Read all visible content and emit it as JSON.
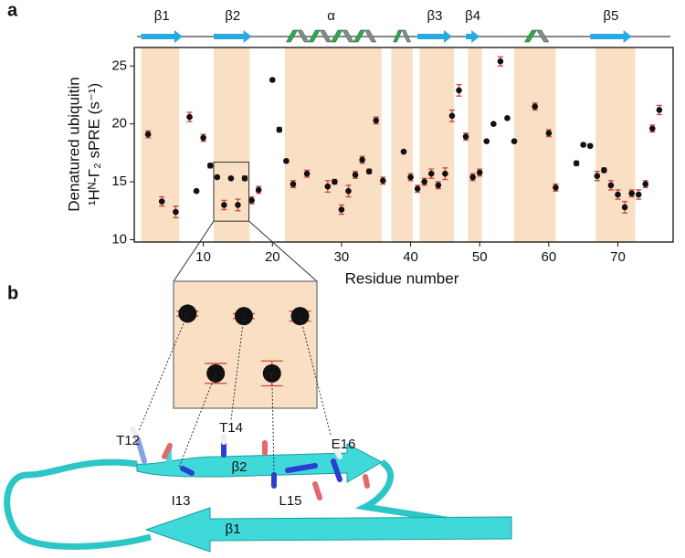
{
  "chart_data": {
    "type": "scatter",
    "panel_label": "a",
    "xlabel": "Residue number",
    "ylabel": [
      "Denatured ubiquitin",
      "¹Hᴺ-Γ₂ sPRE (s⁻¹)"
    ],
    "x": [
      2,
      4,
      6,
      8,
      9,
      10,
      11,
      12,
      13,
      14,
      15,
      16,
      17,
      18,
      20,
      21,
      22,
      23,
      25,
      28,
      29,
      30,
      31,
      32,
      33,
      34,
      35,
      36,
      39,
      40,
      41,
      42,
      43,
      44,
      45,
      46,
      47,
      48,
      49,
      50,
      51,
      52,
      53,
      54,
      55,
      58,
      60,
      61,
      64,
      65,
      66,
      67,
      68,
      69,
      70,
      71,
      72,
      73,
      74,
      75,
      76
    ],
    "values": [
      19.1,
      13.3,
      12.4,
      20.6,
      14.2,
      18.8,
      16.4,
      15.4,
      13.0,
      15.3,
      13.0,
      15.3,
      13.4,
      14.3,
      23.8,
      19.5,
      16.8,
      14.8,
      15.7,
      14.6,
      15.0,
      12.6,
      14.2,
      15.6,
      16.9,
      15.9,
      20.3,
      15.1,
      17.6,
      15.4,
      14.4,
      15.0,
      15.7,
      14.7,
      15.7,
      20.7,
      22.9,
      18.9,
      15.4,
      15.8,
      18.5,
      20.0,
      25.4,
      20.5,
      18.5,
      21.5,
      19.2,
      14.5,
      16.6,
      18.2,
      18.1,
      15.5,
      16.0,
      14.7,
      13.9,
      12.8,
      14.0,
      13.9,
      14.8,
      19.6,
      21.2
    ],
    "errors": [
      0.3,
      0.4,
      0.5,
      0.4,
      0.1,
      0.3,
      0.2,
      0.1,
      0.4,
      0.1,
      0.5,
      0.2,
      0.3,
      0.3,
      0.1,
      0.2,
      0.1,
      0.3,
      0.3,
      0.5,
      0.2,
      0.4,
      0.5,
      0.3,
      0.3,
      0.2,
      0.3,
      0.3,
      0.1,
      0.3,
      0.3,
      0.3,
      0.4,
      0.3,
      0.5,
      0.5,
      0.5,
      0.3,
      0.3,
      0.3,
      0.1,
      0.1,
      0.4,
      0.1,
      0.1,
      0.3,
      0.3,
      0.3,
      0.2,
      0.1,
      0.1,
      0.4,
      0.2,
      0.4,
      0.4,
      0.5,
      0.3,
      0.4,
      0.3,
      0.3,
      0.4
    ],
    "color": "#111111",
    "error_color": "#d0453a",
    "xlim": [
      0,
      78
    ],
    "ylim": [
      9.8,
      26.6
    ],
    "xticks": [
      10,
      20,
      30,
      40,
      50,
      60,
      70
    ],
    "yticks": [
      10,
      15,
      20,
      25
    ],
    "highlight_ranges": [
      [
        1,
        6.5
      ],
      [
        11.5,
        16.7
      ],
      [
        21.8,
        35.8
      ],
      [
        37.2,
        40.3
      ],
      [
        41.3,
        46.3
      ],
      [
        48.3,
        50.3
      ],
      [
        55,
        61
      ],
      [
        66.8,
        72.5
      ]
    ],
    "highlight_color": "#f9dfc4",
    "secondary_structure": [
      {
        "kind": "strand",
        "label": "β1",
        "start": 1,
        "end": 7
      },
      {
        "kind": "strand",
        "label": "β2",
        "start": 11.5,
        "end": 17
      },
      {
        "kind": "helix",
        "label": "α",
        "start": 22,
        "end": 35
      },
      {
        "kind": "helix",
        "start": 37.5,
        "end": 40
      },
      {
        "kind": "strand",
        "label": "β3",
        "start": 41,
        "end": 46
      },
      {
        "kind": "strand",
        "label": "β4",
        "start": 48,
        "end": 50
      },
      {
        "kind": "helix",
        "start": 56.5,
        "end": 60
      },
      {
        "kind": "strand",
        "label": "β5",
        "start": 66,
        "end": 72
      }
    ],
    "zoom": {
      "xlim": [
        11.5,
        16.6
      ],
      "ylim": [
        11.6,
        16.7
      ]
    }
  },
  "structure": {
    "panel_label": "b",
    "residue_labels": [
      "T12",
      "I13",
      "T14",
      "L15",
      "E16"
    ],
    "strand_labels": [
      "β2",
      "β1"
    ]
  }
}
